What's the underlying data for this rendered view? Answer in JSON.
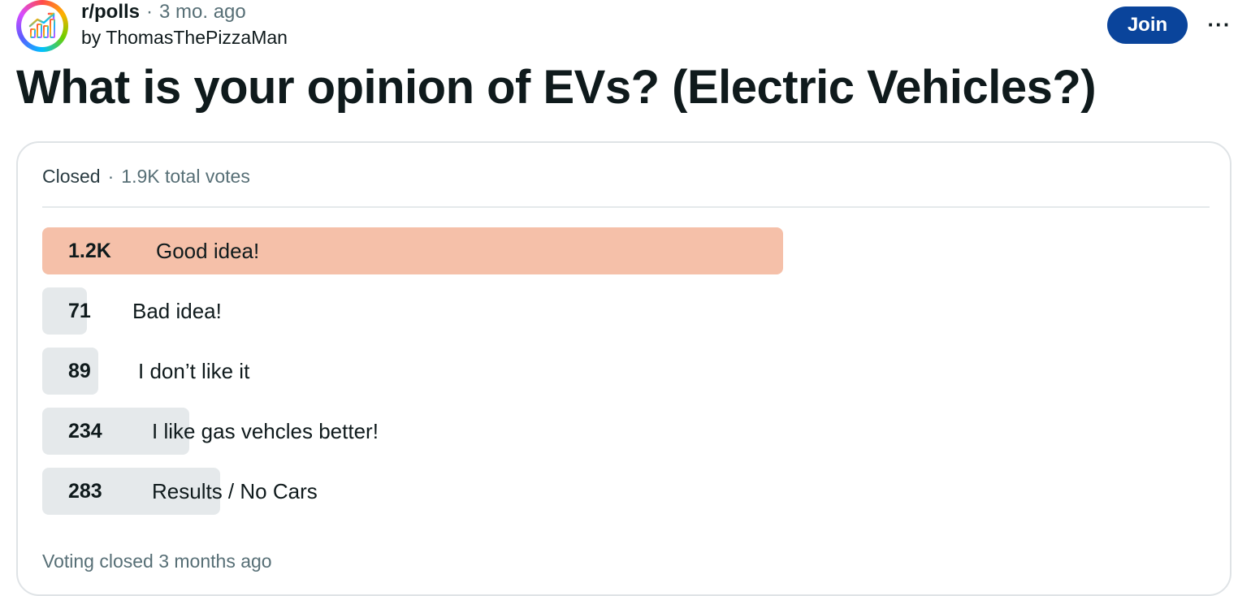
{
  "post": {
    "subreddit": "r/polls",
    "separator": "·",
    "time_ago": "3 mo. ago",
    "author_line": "by ThomasThePizzaMan",
    "join_label": "Join",
    "more_label": "···",
    "title": "What is your opinion of EVs? (Electric Vehicles?)"
  },
  "poll": {
    "status": "Closed",
    "separator": "·",
    "total_votes": "1.9K total votes",
    "options": [
      {
        "count": "1.2K",
        "label": "Good idea!",
        "fraction": 0.63,
        "winner": true
      },
      {
        "count": "71",
        "label": "Bad idea!",
        "fraction": 0.037,
        "winner": false
      },
      {
        "count": "89",
        "label": "I don’t like it",
        "fraction": 0.046,
        "winner": false
      },
      {
        "count": "234",
        "label": "I like gas vehcles better!",
        "fraction": 0.12,
        "winner": false
      },
      {
        "count": "283",
        "label": "Results / No Cars",
        "fraction": 0.15,
        "winner": false
      }
    ],
    "footer": "Voting closed 3 months ago"
  },
  "colors": {
    "accent_join": "#0a449b",
    "winner_bar": "#f5c0a9",
    "bar": "#e5e9eb"
  },
  "icons": {
    "avatar": "polls-chart-icon",
    "more": "ellipsis-icon"
  }
}
